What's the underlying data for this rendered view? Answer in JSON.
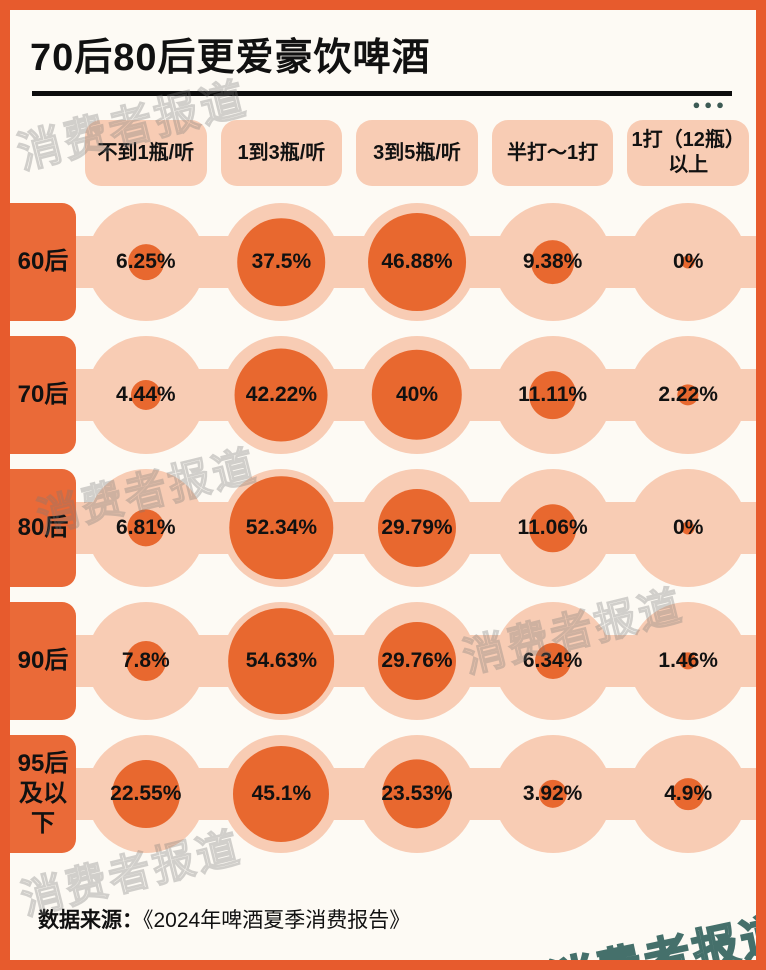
{
  "header": {
    "title": "70后80后更爱豪饮啤酒",
    "menu_dots": "●●●"
  },
  "chart_data": {
    "type": "heatmap",
    "subtype": "bubble-matrix",
    "title": "70后80后更爱豪饮啤酒",
    "unit": "%",
    "columns": [
      "不到1瓶/听",
      "1到3瓶/听",
      "3到5瓶/听",
      "半打～1打",
      "1打（12瓶）以上"
    ],
    "rows": [
      {
        "label": "60后",
        "values": [
          6.25,
          37.5,
          46.88,
          9.38,
          0
        ],
        "labels": [
          "6.25%",
          "37.5%",
          "46.88%",
          "9.38%",
          "0%"
        ]
      },
      {
        "label": "70后",
        "values": [
          4.44,
          42.22,
          40,
          11.11,
          2.22
        ],
        "labels": [
          "4.44%",
          "42.22%",
          "40%",
          "11.11%",
          "2.22%"
        ]
      },
      {
        "label": "80后",
        "values": [
          6.81,
          52.34,
          29.79,
          11.06,
          0
        ],
        "labels": [
          "6.81%",
          "52.34%",
          "29.79%",
          "11.06%",
          "0%"
        ]
      },
      {
        "label": "90后",
        "values": [
          7.8,
          54.63,
          29.76,
          6.34,
          1.46
        ],
        "labels": [
          "7.8%",
          "54.63%",
          "29.76%",
          "6.34%",
          "1.46%"
        ]
      },
      {
        "label": "95后及以下",
        "values": [
          22.55,
          45.1,
          23.53,
          3.92,
          4.9
        ],
        "labels": [
          "22.55%",
          "45.1%",
          "23.53%",
          "3.92%",
          "4.9%"
        ]
      }
    ],
    "layout": {
      "legend": "none",
      "grid": "off",
      "bubble_scale": "sqrt"
    }
  },
  "footer": {
    "source_label": "数据来源：",
    "source_text": "《2024年啤酒夏季消费报告》"
  },
  "watermark": {
    "text": "消费者报道"
  },
  "colors": {
    "frame": "#E75B2D",
    "bubble": "#E8682F",
    "light_circle": "#F8CCB4",
    "row_label_bg": "#EA6A38",
    "text": "#111111",
    "background": "#FDFAF4"
  }
}
